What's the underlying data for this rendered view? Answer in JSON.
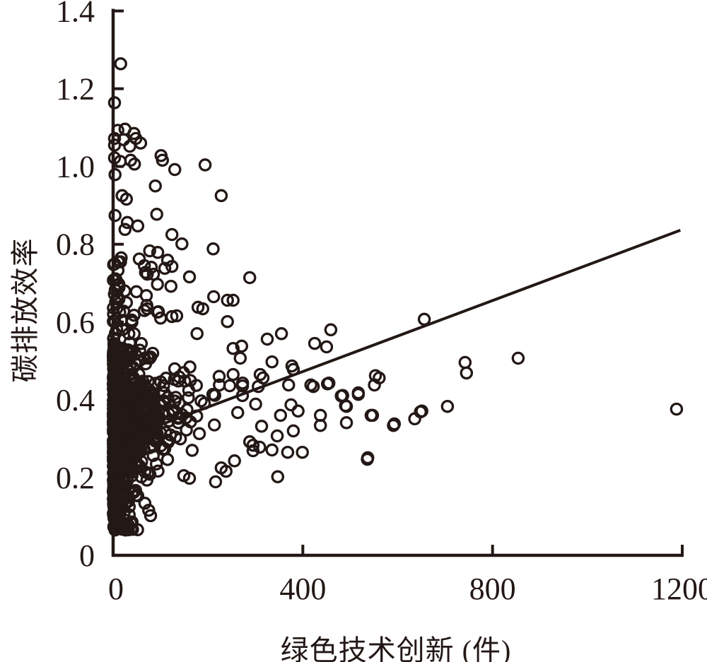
{
  "figure": {
    "background": "#ffffff",
    "ink_color": "#231815"
  },
  "chart_data": {
    "type": "scatter",
    "title": "",
    "xlabel": "绿色技术创新 (件)",
    "ylabel": "碳排放效率",
    "xlim": [
      0,
      1200
    ],
    "ylim": [
      0,
      1.4
    ],
    "x_ticks": [
      0,
      400,
      800,
      1200
    ],
    "y_ticks": [
      0,
      0.2,
      0.4,
      0.6,
      0.8,
      1.0,
      1.2,
      1.4
    ],
    "grid": false,
    "legend": "none",
    "marker": {
      "shape": "open-circle",
      "radius_px": 7.6,
      "stroke_px": 3.3,
      "color": "#231815",
      "fill": "none"
    },
    "trendline": {
      "x1": 0,
      "y1": 0.29,
      "x2": 1196,
      "y2": 0.836,
      "stroke_px": 4
    },
    "points": [
      [
        16,
        1.264
      ],
      [
        3,
        1.164
      ],
      [
        10,
        1.093
      ],
      [
        25,
        1.096
      ],
      [
        44,
        1.085
      ],
      [
        3,
        1.072
      ],
      [
        22,
        1.069
      ],
      [
        48,
        1.072
      ],
      [
        58,
        1.06
      ],
      [
        3,
        1.055
      ],
      [
        35,
        1.052
      ],
      [
        101,
        1.028
      ],
      [
        104,
        1.016
      ],
      [
        3,
        1.022
      ],
      [
        15,
        1.013
      ],
      [
        37,
        1.016
      ],
      [
        45,
        1.006
      ],
      [
        130,
        0.992
      ],
      [
        194,
        1.004
      ],
      [
        4,
        0.979
      ],
      [
        19,
        0.925
      ],
      [
        28,
        0.916
      ],
      [
        89,
        0.95
      ],
      [
        228,
        0.925
      ],
      [
        4,
        0.874
      ],
      [
        30,
        0.856
      ],
      [
        52,
        0.847
      ],
      [
        25,
        0.838
      ],
      [
        92,
        0.877
      ],
      [
        124,
        0.825
      ],
      [
        145,
        0.801
      ],
      [
        211,
        0.788
      ],
      [
        77,
        0.783
      ],
      [
        94,
        0.779
      ],
      [
        115,
        0.759
      ],
      [
        124,
        0.743
      ],
      [
        109,
        0.738
      ],
      [
        72,
        0.723
      ],
      [
        85,
        0.723
      ],
      [
        161,
        0.716
      ],
      [
        288,
        0.714
      ],
      [
        122,
        0.692
      ],
      [
        49,
        0.678
      ],
      [
        70,
        0.668
      ],
      [
        212,
        0.665
      ],
      [
        241,
        0.656
      ],
      [
        253,
        0.656
      ],
      [
        179,
        0.638
      ],
      [
        189,
        0.634
      ],
      [
        72,
        0.634
      ],
      [
        100,
        0.61
      ],
      [
        124,
        0.614
      ],
      [
        134,
        0.616
      ],
      [
        241,
        0.601
      ],
      [
        253,
        0.532
      ],
      [
        271,
        0.538
      ],
      [
        268,
        0.507
      ],
      [
        310,
        0.465
      ],
      [
        316,
        0.456
      ],
      [
        253,
        0.465
      ],
      [
        224,
        0.438
      ],
      [
        273,
        0.443
      ],
      [
        306,
        0.434
      ],
      [
        325,
        0.556
      ],
      [
        355,
        0.57
      ],
      [
        377,
        0.487
      ],
      [
        380,
        0.478
      ],
      [
        656,
        0.607
      ],
      [
        459,
        0.58
      ],
      [
        425,
        0.545
      ],
      [
        450,
        0.536
      ],
      [
        742,
        0.496
      ],
      [
        745,
        0.469
      ],
      [
        553,
        0.462
      ],
      [
        561,
        0.456
      ],
      [
        422,
        0.434
      ],
      [
        455,
        0.443
      ],
      [
        517,
        0.418
      ],
      [
        481,
        0.41
      ],
      [
        490,
        0.385
      ],
      [
        544,
        0.36
      ],
      [
        437,
        0.36
      ],
      [
        437,
        0.334
      ],
      [
        492,
        0.341
      ],
      [
        593,
        0.338
      ],
      [
        636,
        0.351
      ],
      [
        651,
        0.371
      ],
      [
        705,
        0.383
      ],
      [
        536,
        0.247
      ],
      [
        854,
        0.507
      ],
      [
        648,
        0.369
      ],
      [
        1188,
        0.376
      ],
      [
        370,
        0.438
      ],
      [
        417,
        0.438
      ],
      [
        452,
        0.441
      ],
      [
        551,
        0.438
      ],
      [
        484,
        0.411
      ],
      [
        517,
        0.414
      ],
      [
        492,
        0.383
      ],
      [
        375,
        0.387
      ],
      [
        390,
        0.371
      ],
      [
        353,
        0.36
      ],
      [
        547,
        0.36
      ],
      [
        591,
        0.334
      ],
      [
        313,
        0.332
      ],
      [
        380,
        0.32
      ],
      [
        346,
        0.307
      ],
      [
        368,
        0.265
      ],
      [
        399,
        0.265
      ],
      [
        335,
        0.271
      ],
      [
        295,
        0.283
      ],
      [
        295,
        0.269
      ],
      [
        537,
        0.251
      ],
      [
        347,
        0.202
      ],
      [
        288,
        0.292
      ],
      [
        309,
        0.278
      ],
      [
        256,
        0.243
      ],
      [
        228,
        0.225
      ],
      [
        238,
        0.216
      ],
      [
        216,
        0.189
      ],
      [
        149,
        0.205
      ],
      [
        161,
        0.198
      ],
      [
        67,
        0.134
      ],
      [
        75,
        0.116
      ],
      [
        79,
        0.102
      ],
      [
        52,
        0.153
      ],
      [
        34,
        0.125
      ],
      [
        4,
        0.065
      ],
      [
        8,
        0.08
      ],
      [
        2,
        0.095
      ],
      [
        12,
        0.072
      ],
      [
        6,
        0.107
      ]
    ],
    "dense_cluster": {
      "description": "Very dense unresolvable mass of open circles hugging the y-axis (x≈0–200, y≈0.08–0.66), thinning fan out to x≈340.",
      "seed": 12345,
      "layers": [
        {
          "name": "axis-strip",
          "count": 170,
          "x": {
            "type": "pow",
            "exp": 2.2,
            "scale": 14
          },
          "y": {
            "type": "pow",
            "base": 0.1,
            "exp": 1.0,
            "scale": 0.46
          }
        },
        {
          "name": "core",
          "count": 430,
          "x": {
            "type": "exp",
            "scale": 36,
            "u_max": 0.993,
            "max": 185
          },
          "y": {
            "type": "gauss3",
            "c0": 0.315,
            "slope": 0.00035,
            "spread": 0.15,
            "min": 0.085,
            "max": 0.66
          }
        },
        {
          "name": "mid-band",
          "count": 135,
          "x": {
            "type": "exp",
            "scale": 72,
            "offset": 25,
            "u_max": 0.99,
            "max": 335
          },
          "y": {
            "type": "gauss3",
            "c0": 0.345,
            "slope": 0.0003,
            "spread": 0.105,
            "min": 0.17,
            "max": 0.62
          }
        },
        {
          "name": "upper-fan",
          "count": 85,
          "x": {
            "type": "exp",
            "scale": 30,
            "u_max": 0.98,
            "max": 130
          },
          "y": {
            "type": "pow",
            "base": 0.5,
            "exp": 1.7,
            "scale": 0.27
          }
        },
        {
          "name": "lower-tail",
          "count": 65,
          "x": {
            "type": "exp",
            "scale": 20,
            "u_max": 0.98,
            "max": 90
          },
          "y": {
            "type": "pow",
            "base": 0.065,
            "exp": 1.5,
            "scale": 0.17
          }
        }
      ]
    }
  }
}
